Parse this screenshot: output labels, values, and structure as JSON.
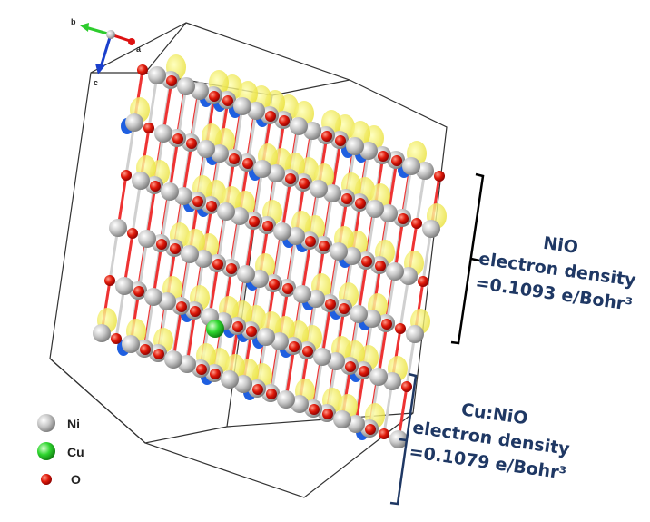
{
  "axes": {
    "b": "b",
    "a": "a",
    "c": "c"
  },
  "legend": [
    "Ni",
    "Cu",
    "O"
  ],
  "annotations": [
    {
      "lines": [
        "NiO",
        "electron density",
        "=0.1093 e/Bohr³"
      ]
    },
    {
      "lines": [
        "Cu:NiO",
        "electron density",
        "=0.1079 e/Bohr³"
      ]
    }
  ]
}
